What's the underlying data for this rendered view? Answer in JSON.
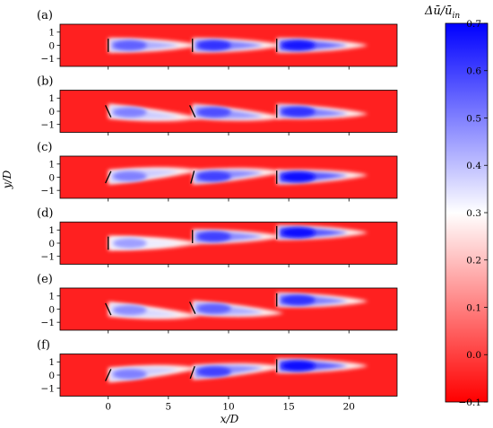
{
  "chart_data": {
    "type": "heatmap",
    "description_title": "",
    "xlabel": "x/D",
    "ylabel": "y/D",
    "xlim": [
      -4,
      24
    ],
    "ylim": [
      -1.6,
      1.6
    ],
    "xticks": [
      0,
      5,
      10,
      15,
      20
    ],
    "xtick_labels": [
      "0",
      "5",
      "10",
      "15",
      "20"
    ],
    "yticks": [
      1,
      0,
      -1
    ],
    "ytick_labels": [
      "1",
      "0",
      "−1"
    ],
    "colorbar": {
      "label": "Δū/ū",
      "label_sub": "in",
      "min": -0.1,
      "max": 0.7,
      "ticks": [
        0.7,
        0.6,
        0.5,
        0.4,
        0.3,
        0.2,
        0.1,
        0.0,
        -0.1
      ],
      "tick_labels": [
        "0.7",
        "0.6",
        "0.5",
        "0.4",
        "0.3",
        "0.2",
        "0.1",
        "0.0",
        "−0.1"
      ],
      "colors": [
        "#ff0000",
        "#ffffff",
        "#0000ff"
      ],
      "center": 0.3
    },
    "background_value": -0.05,
    "turbine_x": [
      0,
      7,
      14
    ],
    "panels": [
      {
        "label": "(a)",
        "turbines": [
          {
            "yaw": 0,
            "offset": 0,
            "peak": 0.55,
            "deflect": 0
          },
          {
            "yaw": 0,
            "offset": 0,
            "peak": 0.62,
            "deflect": 0
          },
          {
            "yaw": 0,
            "offset": 0,
            "peak": 0.66,
            "deflect": 0
          }
        ]
      },
      {
        "label": "(b)",
        "turbines": [
          {
            "yaw": 25,
            "offset": 0,
            "peak": 0.5,
            "deflect": -0.5
          },
          {
            "yaw": 25,
            "offset": 0,
            "peak": 0.58,
            "deflect": -0.45
          },
          {
            "yaw": 0,
            "offset": 0,
            "peak": 0.62,
            "deflect": -0.2
          }
        ]
      },
      {
        "label": "(c)",
        "turbines": [
          {
            "yaw": -25,
            "offset": 0,
            "peak": 0.5,
            "deflect": 0.5
          },
          {
            "yaw": -15,
            "offset": 0,
            "peak": 0.6,
            "deflect": 0.4
          },
          {
            "yaw": 0,
            "offset": 0,
            "peak": 0.68,
            "deflect": 0.15
          }
        ]
      },
      {
        "label": "(d)",
        "turbines": [
          {
            "yaw": 0,
            "offset": 0,
            "peak": 0.45,
            "deflect": 0
          },
          {
            "yaw": 0,
            "offset": 0.5,
            "peak": 0.6,
            "deflect": 0
          },
          {
            "yaw": 0,
            "offset": 0.8,
            "peak": 0.68,
            "deflect": 0
          }
        ]
      },
      {
        "label": "(e)",
        "turbines": [
          {
            "yaw": 25,
            "offset": 0,
            "peak": 0.48,
            "deflect": -0.5
          },
          {
            "yaw": 25,
            "offset": 0.1,
            "peak": 0.55,
            "deflect": -0.4
          },
          {
            "yaw": 0,
            "offset": 0.7,
            "peak": 0.62,
            "deflect": -0.1
          }
        ]
      },
      {
        "label": "(f)",
        "turbines": [
          {
            "yaw": -25,
            "offset": 0,
            "peak": 0.5,
            "deflect": 0.5
          },
          {
            "yaw": -20,
            "offset": 0.2,
            "peak": 0.6,
            "deflect": 0.4
          },
          {
            "yaw": 0,
            "offset": 0.7,
            "peak": 0.68,
            "deflect": 0
          }
        ]
      }
    ]
  }
}
